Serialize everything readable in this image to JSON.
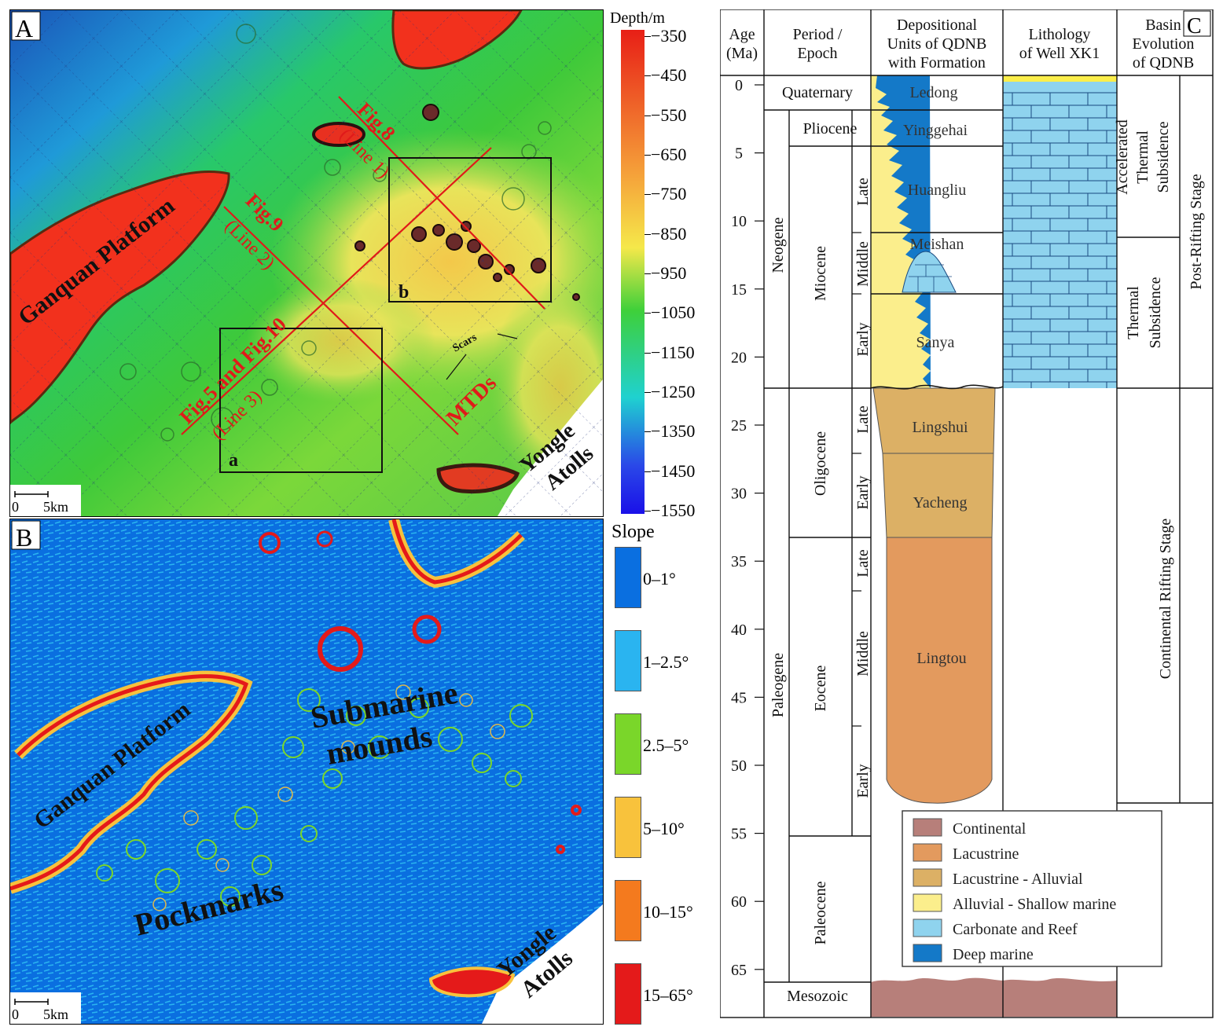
{
  "panelA": {
    "letter": "A",
    "labels": {
      "ganquan": "Ganquan Platform",
      "fig8": "Fig.8",
      "line1": "(Line 1)",
      "fig9": "Fig.9",
      "line2": "(Line 2)",
      "fig5": "Fig.5 and Fig.10",
      "line3": "(Line 3)",
      "mtds": "MTDs",
      "scars": "Scars",
      "yongle1": "Yongle",
      "yongle2": "Atolls",
      "boxA": "a",
      "boxB": "b",
      "scale0": "0",
      "scale5": "5km"
    }
  },
  "depthLegend": {
    "title": "Depth/m",
    "ticks": [
      "−350",
      "−450",
      "−550",
      "−650",
      "−750",
      "−850",
      "−950",
      "−1050",
      "−1150",
      "−1250",
      "−1350",
      "−1450",
      "−1550"
    ]
  },
  "panelB": {
    "letter": "B",
    "labels": {
      "ganquan": "Ganquan Platform",
      "submarine1": "Submarine",
      "submarine2": "mounds",
      "pockmarks": "Pockmarks",
      "yongle1": "Yongle",
      "yongle2": "Atolls",
      "scale0": "0",
      "scale5": "5km"
    }
  },
  "slopeLegend": {
    "title": "Slope",
    "classes": [
      {
        "label": "0–1°",
        "color": "#0a6fe0"
      },
      {
        "label": "1–2.5°",
        "color": "#2ab4f0"
      },
      {
        "label": "2.5–5°",
        "color": "#7ad62a"
      },
      {
        "label": "5–10°",
        "color": "#f8c23c"
      },
      {
        "label": "10–15°",
        "color": "#f47a1e"
      },
      {
        "label": "15–65°",
        "color": "#e41a1a"
      }
    ]
  },
  "panelC": {
    "letter": "C",
    "headers": {
      "age1": "Age",
      "age2": "(Ma)",
      "period1": "Period /",
      "period2": "Epoch",
      "dep1": "Depositional",
      "dep2": "Units of QDNB",
      "dep3": "with Formation",
      "lith1": "Lithology",
      "lith2": "of Well XK1",
      "basin1": "Basin",
      "basin2": "Evolution",
      "basin3": "of QDNB"
    },
    "ages": [
      "0",
      "5",
      "10",
      "15",
      "20",
      "25",
      "30",
      "35",
      "40",
      "45",
      "50",
      "55",
      "60",
      "65"
    ],
    "periods": {
      "quaternary": "Quaternary",
      "pliocene": "Pliocene",
      "neogene": "Neogene",
      "miocene": "Miocene",
      "paleogene": "Paleogene",
      "oligocene": "Oligocene",
      "eocene": "Eocene",
      "paleocene": "Paleocene",
      "mesozoic": "Mesozoic",
      "late": "Late",
      "middle": "Middle",
      "early": "Early"
    },
    "formations": {
      "ledong": "Ledong",
      "yinggehai": "Yinggehai",
      "huangliu": "Huangliu",
      "meishan": "Meishan",
      "sanya": "Sanya",
      "lingshui": "Lingshui",
      "yacheng": "Yacheng",
      "lingtou": "Lingtou"
    },
    "basin": {
      "accel1": "Accelerated",
      "accel2": "Thermal",
      "accel3": "Subsidence",
      "thermal1": "Thermal",
      "thermal2": "Subsidence",
      "postRift": "Post-Rifting Stage",
      "contRift": "Continental Rifting Stage"
    },
    "legend": [
      {
        "label": "Continental",
        "color": "#b77f7a"
      },
      {
        "label": "Lacustrine",
        "color": "#e39a5e"
      },
      {
        "label": "Lacustrine - Alluvial",
        "color": "#dcb065"
      },
      {
        "label": "Alluvial - Shallow marine",
        "color": "#fbee8c"
      },
      {
        "label": "Carbonate and Reef",
        "color": "#8fd3ee"
      },
      {
        "label": "Deep marine",
        "color": "#1479c8"
      }
    ]
  }
}
